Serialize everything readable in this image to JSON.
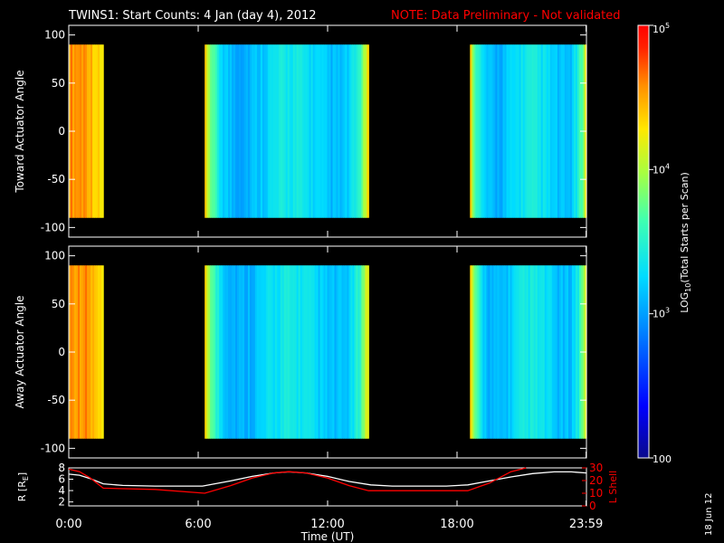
{
  "header": {
    "title": "TWINS1: Start Counts:  4 Jan (day   4), 2012",
    "note": "NOTE: Data Preliminary - Not validated",
    "note_color": "#ff0000"
  },
  "side_date": "18 Jun 12",
  "colorbar": {
    "label_pre": "LOG",
    "label_sub": "10",
    "label_post": "(Total Starts per Scan)",
    "tick_labels": [
      "100",
      "10",
      "10",
      "10"
    ],
    "tick_exponents": [
      "",
      "3",
      "4",
      "5"
    ],
    "scale": "log",
    "range": [
      100,
      100000
    ]
  },
  "chart_data": [
    {
      "type": "heatmap",
      "ylabel": "Toward Actuator Angle",
      "xlim": [
        0,
        24
      ],
      "ylim": [
        -110,
        110
      ],
      "yticks": [
        "-100",
        "-50",
        "0",
        "50",
        "100"
      ],
      "ytick_values": [
        -100,
        -50,
        0,
        50,
        100
      ],
      "data_angle_range": [
        -90,
        90
      ],
      "data_intervals_hours": [
        [
          0.0,
          1.6
        ],
        [
          6.3,
          13.9
        ],
        [
          18.6,
          24.0
        ]
      ],
      "color_scale": "log",
      "value_range": [
        100,
        100000
      ]
    },
    {
      "type": "heatmap",
      "ylabel": "Away Actuator Angle",
      "xlim": [
        0,
        24
      ],
      "ylim": [
        -110,
        110
      ],
      "yticks": [
        "-100",
        "-50",
        "0",
        "50",
        "100"
      ],
      "ytick_values": [
        -100,
        -50,
        0,
        50,
        100
      ],
      "data_angle_range": [
        -90,
        90
      ],
      "data_intervals_hours": [
        [
          0.0,
          1.6
        ],
        [
          6.3,
          13.9
        ],
        [
          18.6,
          24.0
        ]
      ],
      "color_scale": "log",
      "value_range": [
        100,
        100000
      ]
    },
    {
      "type": "line",
      "xlabel": "Time (UT)",
      "xticks": [
        "0:00",
        "6:00",
        "12:00",
        "18:00",
        "23:59"
      ],
      "xtick_values": [
        0,
        6,
        12,
        18,
        23.983
      ],
      "y_left_label_pre": "R [R",
      "y_left_label_sub": "E",
      "y_left_label_post": "]",
      "y_left_ticks": [
        "2",
        "4",
        "6",
        "8"
      ],
      "y_left_tick_values": [
        2,
        4,
        6,
        8
      ],
      "y_left_lim": [
        1.3,
        8
      ],
      "y_right_label": "L Shell",
      "y_right_ticks": [
        "0",
        "10",
        "20",
        "30"
      ],
      "y_right_tick_values": [
        0,
        10,
        20,
        30
      ],
      "y_right_lim": [
        0,
        30
      ],
      "series": [
        {
          "axis": "left",
          "color": "#ffffff",
          "x": [
            0,
            0.5,
            1,
            1.6,
            2.5,
            4,
            5,
            6.2,
            7.5,
            8.5,
            9.5,
            10.2,
            11,
            12,
            13,
            14,
            15,
            16,
            17.5,
            18.5,
            19.5,
            20.5,
            21.5,
            22.5,
            23.3,
            24
          ],
          "y": [
            6.9,
            6.7,
            6.1,
            5.2,
            4.9,
            4.8,
            4.8,
            4.8,
            5.7,
            6.5,
            7.1,
            7.3,
            7.1,
            6.5,
            5.6,
            5.0,
            4.8,
            4.8,
            4.8,
            5.0,
            5.7,
            6.4,
            7.0,
            7.3,
            7.3,
            7.1
          ]
        },
        {
          "axis": "right",
          "color": "#ff0000",
          "x": [
            0,
            0.5,
            1,
            1.6,
            4,
            6.3,
            7.5,
            8.5,
            9.5,
            10.2,
            11,
            12,
            13,
            13.9,
            16,
            18.5,
            19.5,
            20.5,
            21.2
          ],
          "y": [
            29,
            27,
            22,
            14,
            13,
            10,
            16,
            22,
            26,
            27,
            26,
            22,
            16,
            12,
            12,
            12,
            18,
            27,
            31
          ]
        }
      ]
    }
  ]
}
